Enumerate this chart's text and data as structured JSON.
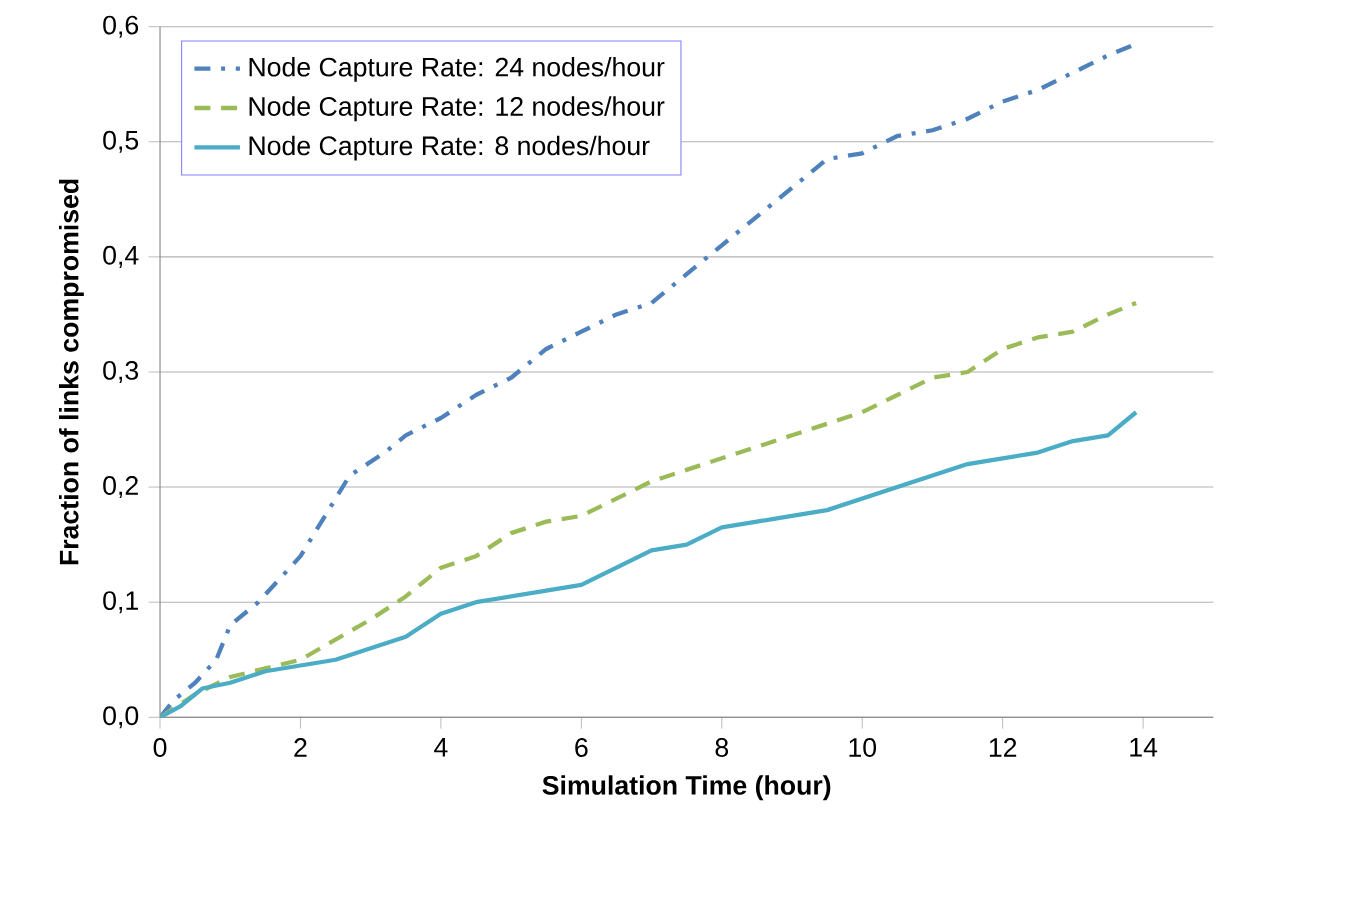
{
  "chart_data": {
    "type": "line",
    "xlabel": "Simulation Time (hour)",
    "ylabel": "Fraction of links compromised",
    "xlim": [
      0,
      15
    ],
    "xticks": [
      0,
      2,
      4,
      6,
      8,
      10,
      12,
      14
    ],
    "ylim": [
      0,
      0.6
    ],
    "yticks": [
      {
        "value": 0,
        "label": "0,0"
      },
      {
        "value": 0.1,
        "label": "0,1"
      },
      {
        "value": 0.2,
        "label": "0,2"
      },
      {
        "value": 0.3,
        "label": "0,3"
      },
      {
        "value": 0.4,
        "label": "0,4"
      },
      {
        "value": 0.5,
        "label": "0,5"
      },
      {
        "value": 0.6,
        "label": "0,6"
      }
    ],
    "grid": "y",
    "legend": "top left",
    "series": [
      {
        "name": "Node Capture Rate: 24 nodes/hour",
        "color": "#4f81bd",
        "line_style": "dashdot",
        "x": [
          0,
          0.2,
          0.5,
          0.8,
          1,
          1.4,
          2,
          2.3,
          2.7,
          3.2,
          3.5,
          4,
          4.5,
          5,
          5.5,
          6,
          6.5,
          7,
          7.5,
          8,
          8.5,
          9,
          9.5,
          10,
          10.5,
          11,
          11.5,
          12,
          12.5,
          13,
          13.5,
          13.9
        ],
        "values": [
          0,
          0.015,
          0.03,
          0.05,
          0.08,
          0.1,
          0.14,
          0.17,
          0.21,
          0.23,
          0.245,
          0.26,
          0.28,
          0.295,
          0.32,
          0.335,
          0.35,
          0.36,
          0.385,
          0.41,
          0.435,
          0.46,
          0.485,
          0.49,
          0.505,
          0.51,
          0.52,
          0.535,
          0.545,
          0.56,
          0.575,
          0.585
        ]
      },
      {
        "name": "Node Capture Rate: 12 nodes/hour",
        "color": "#9bbb59",
        "line_style": "dashed",
        "x": [
          0,
          0.5,
          1,
          2,
          3,
          3.5,
          4,
          4.5,
          5,
          5.5,
          6,
          6.5,
          7,
          7.5,
          8,
          9,
          9.5,
          10,
          10.5,
          11,
          11.5,
          12,
          12.5,
          13,
          13.5,
          13.9
        ],
        "values": [
          0,
          0.02,
          0.035,
          0.05,
          0.085,
          0.105,
          0.13,
          0.14,
          0.16,
          0.17,
          0.175,
          0.19,
          0.205,
          0.215,
          0.225,
          0.245,
          0.255,
          0.265,
          0.28,
          0.295,
          0.3,
          0.32,
          0.33,
          0.335,
          0.35,
          0.36
        ]
      },
      {
        "name": "Node Capture Rate: 8 nodes/hour",
        "color": "#4bacc6",
        "line_style": "solid",
        "x": [
          0,
          0.3,
          0.6,
          1,
          1.5,
          2,
          2.5,
          3,
          3.5,
          4,
          4.5,
          5,
          5.5,
          6,
          6.5,
          7,
          7.5,
          8,
          8.5,
          9,
          9.5,
          10,
          10.5,
          11,
          11.5,
          12,
          12.5,
          13,
          13.5,
          13.9
        ],
        "values": [
          0,
          0.01,
          0.025,
          0.03,
          0.04,
          0.045,
          0.05,
          0.06,
          0.07,
          0.09,
          0.1,
          0.105,
          0.11,
          0.115,
          0.13,
          0.145,
          0.15,
          0.165,
          0.17,
          0.175,
          0.18,
          0.19,
          0.2,
          0.21,
          0.22,
          0.225,
          0.23,
          0.24,
          0.245,
          0.265
        ]
      }
    ]
  }
}
